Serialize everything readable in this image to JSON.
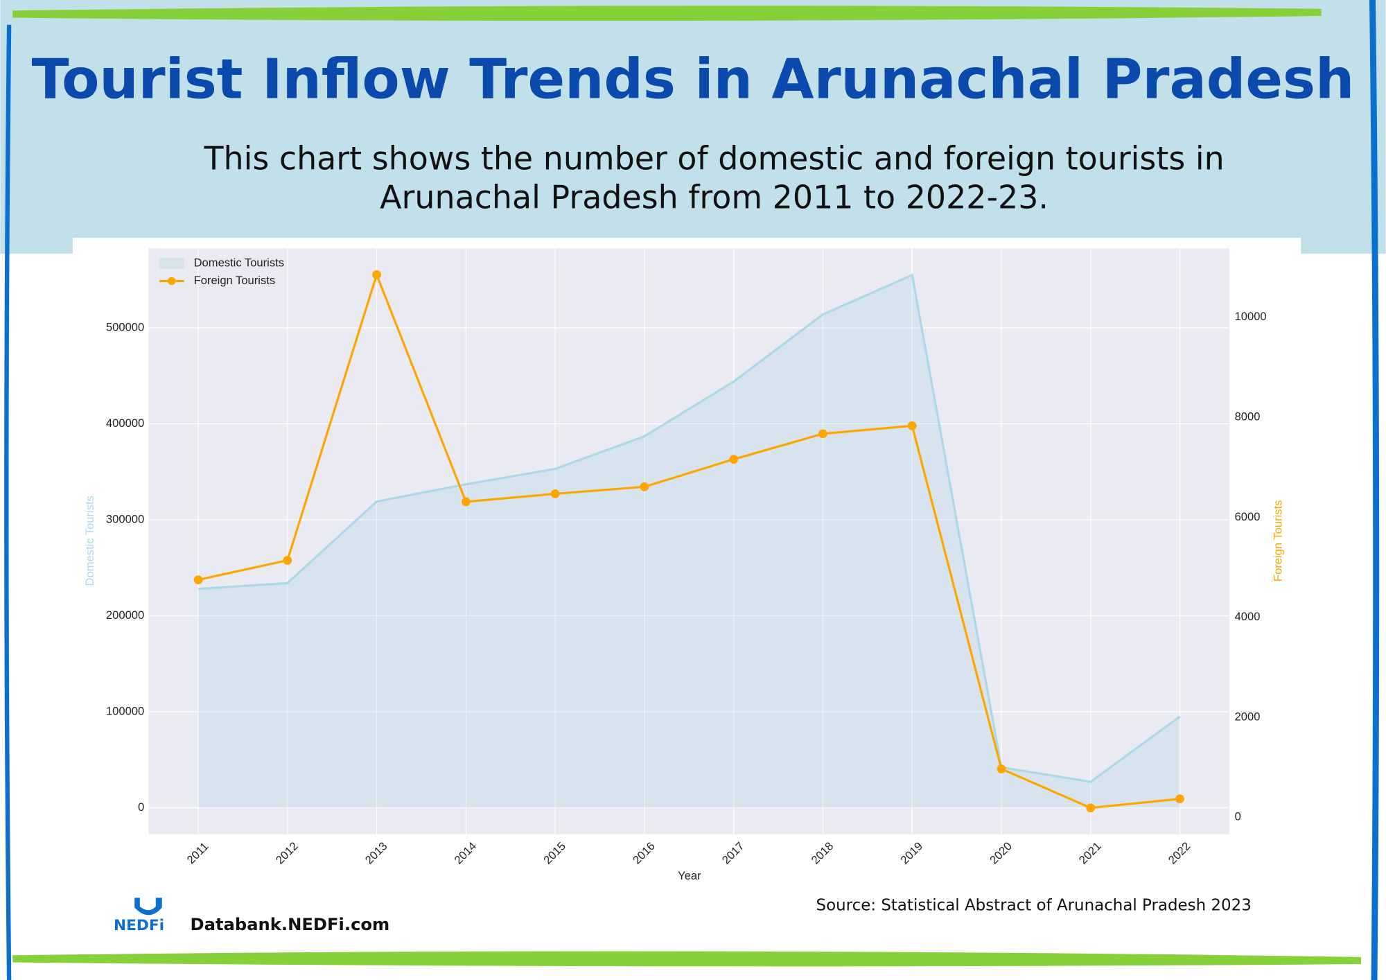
{
  "title": "Tourist Inflow Trends in Arunachal Pradesh",
  "subtitle": [
    "This chart shows the number of domestic and foreign tourists in",
    "Arunachal Pradesh from 2011 to 2022-23."
  ],
  "source": "Source: Statistical Abstract of Arunachal Pradesh 2023",
  "website": "Databank.NEDFi.com",
  "logo": "NEDFi",
  "chart_data": {
    "type": "area-line",
    "xlabel": "Year",
    "ylabel": "Domestic Tourists",
    "y2label": "Foreign Tourists",
    "categories": [
      "2011",
      "2012",
      "2013",
      "2014",
      "2015",
      "2016",
      "2017",
      "2018",
      "2019",
      "2020",
      "2021",
      "2022"
    ],
    "series": [
      {
        "name": "Domestic Tourists",
        "type": "area",
        "color": "#add8e6",
        "axis": "y",
        "values": [
          228000,
          234000,
          319000,
          337000,
          353000,
          387000,
          444000,
          514000,
          555000,
          42000,
          27000,
          95000
        ]
      },
      {
        "name": "Foreign Tourists",
        "type": "line",
        "color": "#ffa500",
        "axis": "y2",
        "values": [
          4750,
          5140,
          10850,
          6310,
          6470,
          6610,
          7160,
          7670,
          7830,
          970,
          190,
          370
        ]
      }
    ],
    "ylim": [
      -27600,
      582900
    ],
    "yticks": [
      0,
      100000,
      200000,
      300000,
      400000,
      500000
    ],
    "y2lim": [
      -336,
      11378
    ],
    "y2ticks": [
      0,
      2000,
      4000,
      6000,
      8000,
      10000
    ],
    "grid": true,
    "legend": "upper left"
  }
}
